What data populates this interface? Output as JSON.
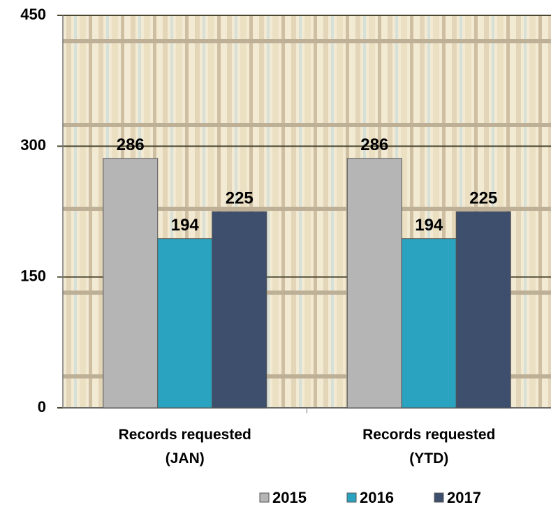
{
  "chart_data": {
    "type": "bar",
    "categories": [
      "Records requested (JAN)",
      "Records requested (YTD)"
    ],
    "series": [
      {
        "name": "2015",
        "color": "#b5b5b5",
        "values": [
          286,
          286
        ]
      },
      {
        "name": "2016",
        "color": "#2aa3c0",
        "values": [
          194,
          194
        ]
      },
      {
        "name": "2017",
        "color": "#3e4e6d",
        "values": [
          225,
          225
        ]
      }
    ],
    "ylim": [
      0,
      450
    ],
    "yticks": [
      0,
      150,
      300,
      450
    ],
    "grid": true,
    "legend": "bottom"
  }
}
